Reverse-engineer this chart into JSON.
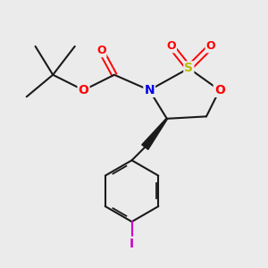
{
  "background_color": "#ebebeb",
  "fig_size": [
    3.0,
    3.0
  ],
  "dpi": 100,
  "colors": {
    "N": "#0000ee",
    "S": "#bbbb00",
    "O": "#ff0000",
    "C": "#1a1a1a",
    "I": "#cc00cc",
    "bond": "#1a1a1a"
  },
  "xlim": [
    -0.15,
    1.05
  ],
  "ylim": [
    -0.12,
    1.08
  ]
}
